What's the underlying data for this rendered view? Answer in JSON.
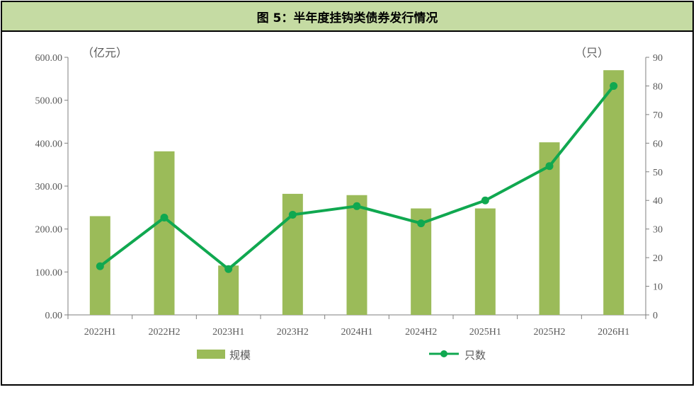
{
  "header": {
    "title": "图 5：半年度挂钩类债券发行情况"
  },
  "colors": {
    "bar": "#9bbb59",
    "line": "#10a850",
    "title_bg": "#c5dba3",
    "axis": "#7f7f7f",
    "text": "#595959"
  },
  "chart_data": {
    "type": "bar",
    "categories": [
      "2022H1",
      "2022H2",
      "2023H1",
      "2023H2",
      "2024H1",
      "2024H2",
      "2025H1",
      "2025H2",
      "2026H1"
    ],
    "series": [
      {
        "name": "规模",
        "type": "bar",
        "axis": "left",
        "values": [
          230,
          381,
          115,
          282,
          279,
          248,
          248,
          402,
          570
        ]
      },
      {
        "name": "只数",
        "type": "line",
        "axis": "right",
        "values": [
          17,
          34,
          16,
          35,
          38,
          32,
          40,
          52,
          80
        ]
      }
    ],
    "left_axis": {
      "unit": "（亿元）",
      "ylim": [
        0,
        600
      ],
      "ticks": [
        "0.00",
        "100.00",
        "200.00",
        "300.00",
        "400.00",
        "500.00",
        "600.00"
      ]
    },
    "right_axis": {
      "unit": "（只）",
      "ylim": [
        0,
        90
      ],
      "ticks": [
        "0",
        "10",
        "20",
        "30",
        "40",
        "50",
        "60",
        "70",
        "80",
        "90"
      ]
    },
    "legend": {
      "placement": "bottom",
      "items": [
        "规模",
        "只数"
      ]
    },
    "grid": false
  }
}
